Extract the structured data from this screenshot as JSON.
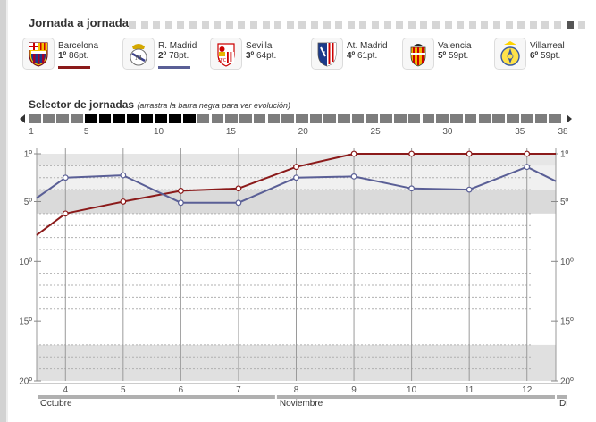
{
  "header": {
    "title": "Jornada a jornada",
    "selector_title": "Selector de jornadas",
    "selector_note": "(arrastra la barra negra para ver evolución)"
  },
  "jornada_strip": {
    "count": 38,
    "current": 37
  },
  "selector": {
    "total": 38,
    "selected_from": 5,
    "selected_to": 12,
    "tick_labels": [
      "1",
      "5",
      "10",
      "15",
      "20",
      "25",
      "30",
      "35",
      "38"
    ]
  },
  "teams": [
    {
      "name": "Barcelona",
      "position": "1º",
      "points": "86pt.",
      "crest": "barcelona-crest",
      "color": "#8b1a1a",
      "show_line": true
    },
    {
      "name": "R. Madrid",
      "position": "2º",
      "points": "78pt.",
      "crest": "real-madrid-crest",
      "color": "#5a5f96",
      "show_line": true
    },
    {
      "name": "Sevilla",
      "position": "3º",
      "points": "64pt.",
      "crest": "sevilla-crest",
      "color": "#cc0000",
      "show_line": false
    },
    {
      "name": "At. Madrid",
      "position": "4º",
      "points": "61pt.",
      "crest": "atletico-crest",
      "color": "#cc0000",
      "show_line": false
    },
    {
      "name": "Valencia",
      "position": "5º",
      "points": "59pt.",
      "crest": "valencia-crest",
      "color": "#e6a000",
      "show_line": false
    },
    {
      "name": "Villarreal",
      "position": "6º",
      "points": "59pt.",
      "crest": "villarreal-crest",
      "color": "#e6c000",
      "show_line": false
    }
  ],
  "chart_data": {
    "type": "line",
    "y_axis": {
      "min": 1,
      "max": 20,
      "inverted": true,
      "tick_labels": [
        "1º",
        "5º",
        "10º",
        "15º",
        "20º"
      ],
      "ticks": [
        1,
        5,
        10,
        15,
        20
      ]
    },
    "x": [
      3.5,
      4,
      5,
      6,
      7,
      8,
      9,
      10,
      11,
      12,
      12.5
    ],
    "x_tick_labels": [
      "4",
      "5",
      "6",
      "7",
      "8",
      "9",
      "10",
      "11",
      "12"
    ],
    "x_ticks": [
      4,
      5,
      6,
      7,
      8,
      9,
      10,
      11,
      12
    ],
    "months": [
      {
        "label": "Octubre",
        "from": 3.5,
        "to": 7.65
      },
      {
        "label": "Noviembre",
        "from": 7.65,
        "to": 12.5
      },
      {
        "label": "Di",
        "from": 12.5,
        "to": 12.85
      }
    ],
    "bands": [
      {
        "from": 1,
        "to": 2,
        "color": "#e6e6e6"
      },
      {
        "from": 2,
        "to": 4,
        "color": "#f0f0f0"
      },
      {
        "from": 4,
        "to": 6,
        "color": "#dadada"
      },
      {
        "from": 17,
        "to": 20,
        "color": "#e0e0e0"
      }
    ],
    "series": [
      {
        "name": "Barcelona",
        "color": "#8b1a1a",
        "values": [
          7.8,
          6,
          5,
          4.1,
          3.9,
          2.1,
          1,
          1,
          1,
          1,
          1
        ]
      },
      {
        "name": "R. Madrid",
        "color": "#5a5f96",
        "values": [
          4.7,
          3,
          2.8,
          5.1,
          5.1,
          3,
          2.9,
          3.9,
          4,
          2.1,
          3.3
        ]
      }
    ]
  }
}
